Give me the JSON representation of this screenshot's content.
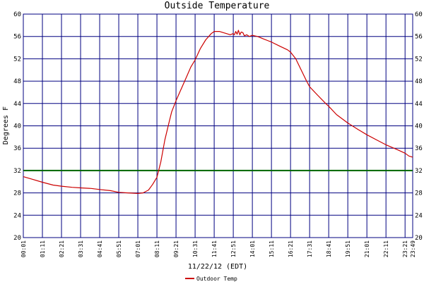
{
  "chart_data": {
    "type": "line",
    "title": "Outside Temperature",
    "xlabel": "11/22/12 (EDT)",
    "ylabel": "Degrees F",
    "ylim": [
      20,
      60
    ],
    "y_ticks": [
      20,
      24,
      28,
      32,
      36,
      40,
      44,
      48,
      52,
      56,
      60
    ],
    "right_axis_ticks": [
      20,
      24,
      28,
      32,
      36,
      40,
      44,
      48,
      52,
      56,
      60
    ],
    "x_ticks": [
      "00:01",
      "01:11",
      "02:21",
      "03:31",
      "04:41",
      "05:51",
      "07:01",
      "08:11",
      "09:21",
      "10:31",
      "11:41",
      "12:51",
      "14:01",
      "15:11",
      "16:21",
      "17:31",
      "18:41",
      "19:51",
      "21:01",
      "22:11",
      "23:21",
      "23:49"
    ],
    "x_ticks_minutes": [
      1,
      71,
      141,
      211,
      281,
      351,
      421,
      491,
      561,
      631,
      701,
      771,
      841,
      911,
      981,
      1051,
      1121,
      1191,
      1261,
      1331,
      1401,
      1429
    ],
    "xlim_minutes": [
      1,
      1429
    ],
    "grid": true,
    "reference_line": {
      "value": 32,
      "color": "#006400"
    },
    "legend_position": "bottom-center",
    "series": [
      {
        "name": "Outdoor Temp",
        "color": "#cc0000",
        "x_minutes": [
          1,
          30,
          71,
          110,
          141,
          180,
          211,
          250,
          281,
          320,
          351,
          385,
          421,
          440,
          460,
          475,
          491,
          505,
          520,
          535,
          545,
          561,
          580,
          600,
          615,
          631,
          650,
          670,
          690,
          701,
          720,
          740,
          760,
          770,
          775,
          780,
          785,
          790,
          795,
          800,
          806,
          812,
          820,
          830,
          841,
          850,
          860,
          880,
          900,
          911,
          940,
          970,
          981,
          1000,
          1020,
          1040,
          1051,
          1080,
          1110,
          1121,
          1150,
          1191,
          1230,
          1261,
          1300,
          1331,
          1370,
          1401,
          1415,
          1429
        ],
        "values": [
          30.9,
          30.5,
          29.9,
          29.4,
          29.2,
          29.0,
          28.9,
          28.8,
          28.6,
          28.4,
          28.1,
          28.0,
          27.9,
          28.0,
          28.5,
          29.5,
          30.8,
          33.5,
          37.5,
          40.5,
          42.5,
          44.5,
          46.6,
          48.8,
          50.5,
          51.8,
          53.8,
          55.4,
          56.5,
          56.9,
          56.9,
          56.6,
          56.3,
          56.5,
          56.3,
          56.9,
          56.4,
          57.1,
          56.3,
          56.8,
          56.7,
          56.1,
          56.3,
          56.0,
          56.2,
          56.1,
          56.0,
          55.6,
          55.2,
          55.0,
          54.3,
          53.6,
          53.2,
          52.0,
          50.0,
          48.0,
          47.0,
          45.5,
          44.0,
          43.5,
          42.0,
          40.5,
          39.3,
          38.4,
          37.4,
          36.6,
          35.8,
          35.1,
          34.6,
          34.4
        ]
      }
    ]
  }
}
